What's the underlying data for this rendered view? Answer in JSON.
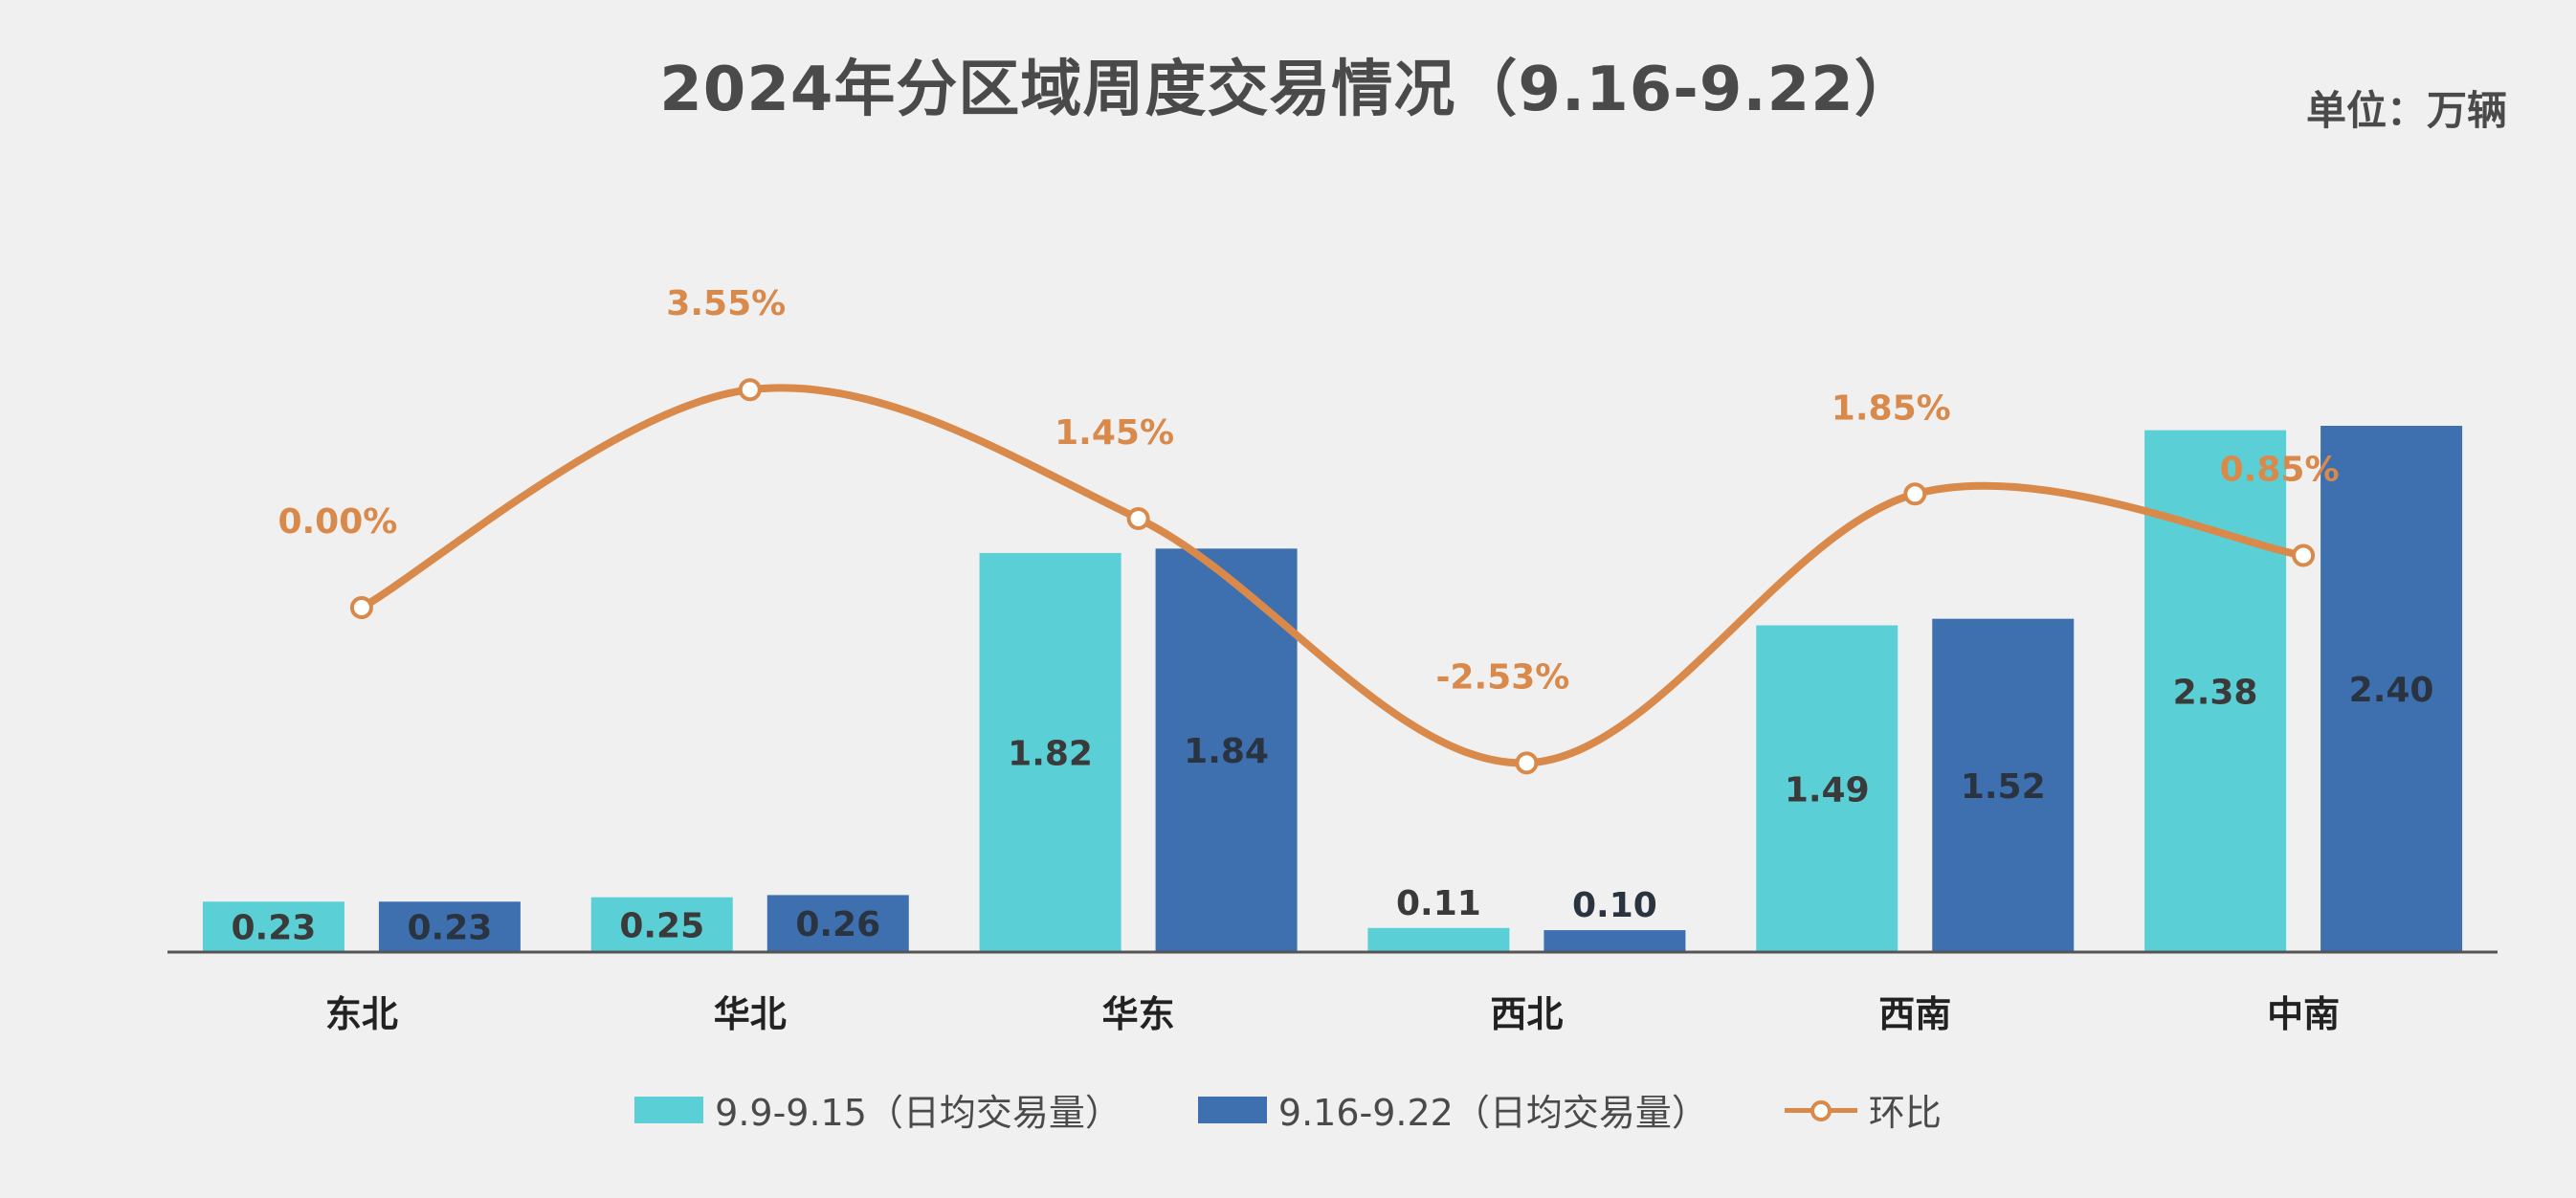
{
  "title": "2024年分区域周度交易情况（9.16-9.22）",
  "unit": "单位：万辆",
  "colors": {
    "series1": "#5bcfd6",
    "series2": "#3e6fae",
    "line": "#d9894a",
    "axis": "#555555",
    "background": "#f0f0f0"
  },
  "chart_data": {
    "type": "bar",
    "title": "2024年分区域周度交易情况（9.16-9.22）",
    "categories": [
      "东北",
      "华北",
      "华东",
      "西北",
      "西南",
      "中南"
    ],
    "series": [
      {
        "name": "9.9-9.15（日均交易量）",
        "values": [
          0.23,
          0.25,
          1.82,
          0.11,
          1.49,
          2.38
        ],
        "labels": [
          "0.23",
          "0.25",
          "1.82",
          "0.11",
          "1.49",
          "2.38"
        ]
      },
      {
        "name": "9.16-9.22（日均交易量）",
        "values": [
          0.23,
          0.26,
          1.84,
          0.1,
          1.52,
          2.4
        ],
        "labels": [
          "0.23",
          "0.26",
          "1.84",
          "0.10",
          "1.52",
          "2.40"
        ]
      }
    ],
    "line_series": {
      "name": "环比",
      "values": [
        0.0,
        3.55,
        1.45,
        -2.53,
        1.85,
        0.85
      ],
      "labels": [
        "0.00%",
        "3.55%",
        "1.45%",
        "-2.53%",
        "1.85%",
        "0.85%"
      ],
      "axis": "secondary",
      "ylim": [
        -6,
        6
      ]
    },
    "ylim": [
      0,
      2.4
    ],
    "legend_position": "bottom",
    "grid": false
  }
}
